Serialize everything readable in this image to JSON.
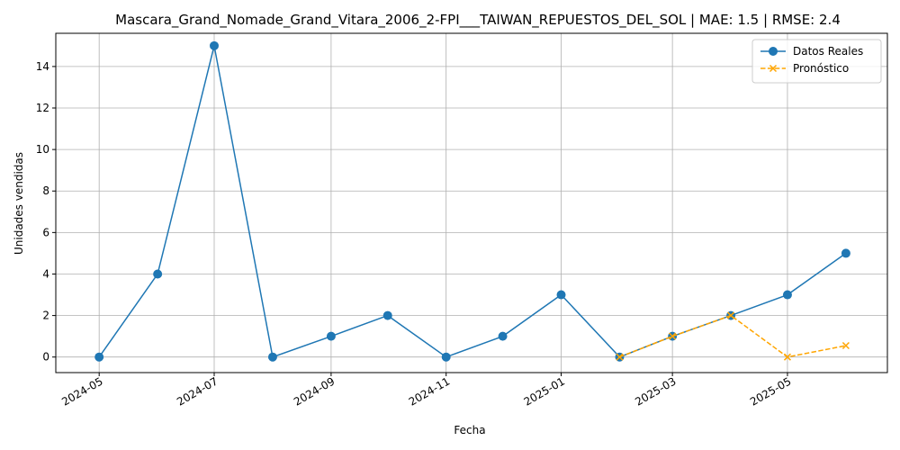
{
  "chart_data": {
    "type": "line",
    "title": "Mascara_Grand_Nomade_Grand_Vitara_2006_2-FPI___TAIWAN_REPUESTOS_DEL_SOL | MAE: 1.5 | RMSE: 2.4",
    "xlabel": "Fecha",
    "ylabel": "Unidades vendidas",
    "ylim": [
      -0.75,
      15.6
    ],
    "xlim": [
      "2024-04-08",
      "2025-06-23"
    ],
    "grid": true,
    "legend_position": "top-right",
    "y_ticks": [
      0,
      2,
      4,
      6,
      8,
      10,
      12,
      14
    ],
    "x_ticks": [
      "2024-05",
      "2024-07",
      "2024-09",
      "2024-11",
      "2025-01",
      "2025-03",
      "2025-05"
    ],
    "series": [
      {
        "name": "Datos Reales",
        "color": "#1f77b4",
        "style": "solid",
        "marker": "circle",
        "x": [
          "2024-05-01",
          "2024-06-01",
          "2024-07-01",
          "2024-08-01",
          "2024-09-01",
          "2024-10-01",
          "2024-11-01",
          "2024-12-01",
          "2025-01-01",
          "2025-02-01",
          "2025-03-01",
          "2025-04-01",
          "2025-05-01",
          "2025-06-01"
        ],
        "values": [
          0,
          4,
          15,
          0,
          1,
          2,
          0,
          1,
          3,
          0,
          1,
          2,
          3,
          5
        ]
      },
      {
        "name": "Pronóstico",
        "color": "#ffa500",
        "style": "dashed",
        "marker": "x",
        "x": [
          "2025-02-01",
          "2025-03-01",
          "2025-04-01",
          "2025-05-01",
          "2025-06-01"
        ],
        "values": [
          0,
          1,
          2,
          0,
          0.55
        ]
      }
    ]
  }
}
